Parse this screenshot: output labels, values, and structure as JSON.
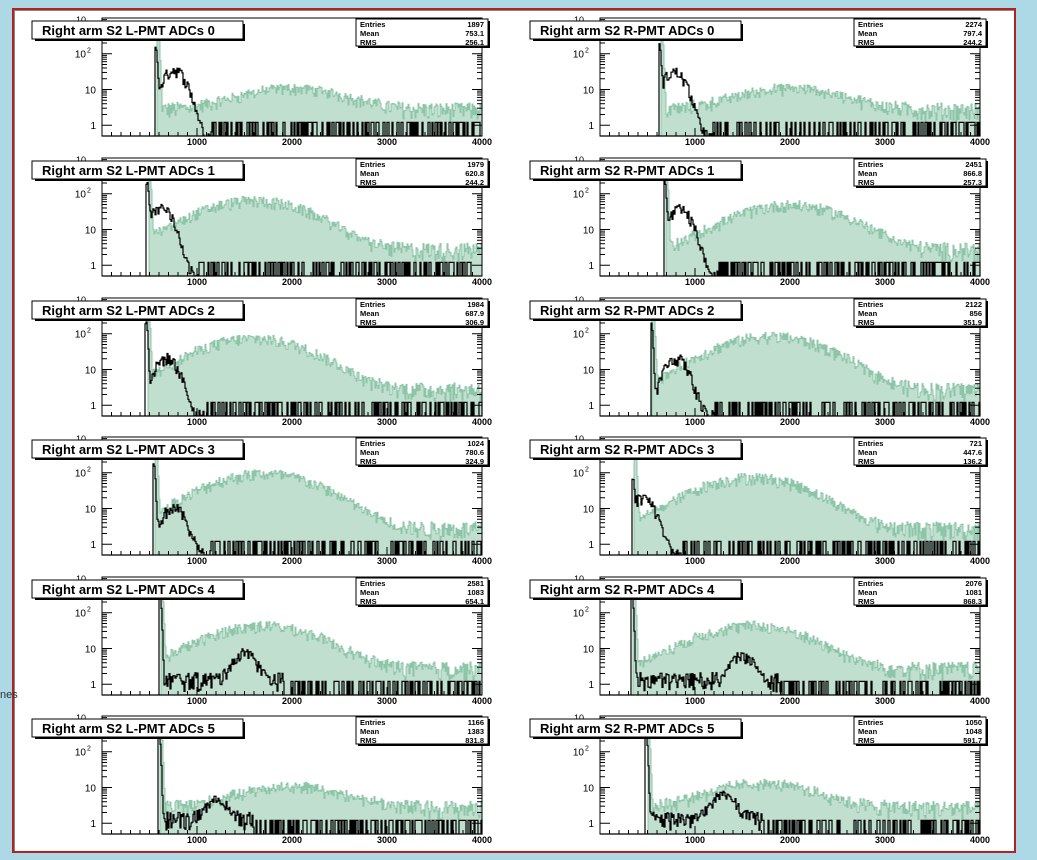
{
  "side_label": "nes",
  "colors": {
    "background": "#add8e6",
    "frame": "#b22222",
    "hist_line": "#000000",
    "hist_fill": "#8cc5a8"
  },
  "chart_data": [
    {
      "type": "histogram",
      "title": "Right arm S2 L-PMT ADCs 0",
      "stats": {
        "Entries": "1897",
        "Mean": "753.1",
        "RMS": "256.1"
      },
      "x_ticks": [
        "1000",
        "2000",
        "3000",
        "4000"
      ],
      "y_ticks": [
        "1",
        "10",
        "10²"
      ],
      "xlim": [
        0,
        4000
      ],
      "y_scale": "log",
      "series": [
        {
          "color": "#000000",
          "peak_x": 565,
          "peak_y": 150,
          "bump_x": 760,
          "bump_y": 35,
          "tail_y": 0.5
        },
        {
          "color": "#8cc5a8",
          "peak_x": 590,
          "peak_y": 500,
          "bump_x": 2000,
          "bump_y": 8,
          "tail_y": 3
        }
      ]
    },
    {
      "type": "histogram",
      "title": "Right arm S2 R-PMT ADCs 0",
      "stats": {
        "Entries": "2274",
        "Mean": "797.4",
        "RMS": "244.2"
      },
      "x_ticks": [
        "1000",
        "2000",
        "3000",
        "4000"
      ],
      "y_ticks": [
        "1",
        "10",
        "10²"
      ],
      "xlim": [
        0,
        4000
      ],
      "y_scale": "log",
      "series": [
        {
          "color": "#000000",
          "peak_x": 625,
          "peak_y": 180,
          "bump_x": 780,
          "bump_y": 30,
          "tail_y": 0.5
        },
        {
          "color": "#8cc5a8",
          "peak_x": 650,
          "peak_y": 500,
          "bump_x": 2000,
          "bump_y": 8,
          "tail_y": 3
        }
      ]
    },
    {
      "type": "histogram",
      "title": "Right arm S2 L-PMT ADCs 1",
      "stats": {
        "Entries": "1979",
        "Mean": "620.8",
        "RMS": "244.2"
      },
      "x_ticks": [
        "1000",
        "2000",
        "3000",
        "4000"
      ],
      "y_ticks": [
        "1",
        "10",
        "10²"
      ],
      "xlim": [
        0,
        4000
      ],
      "y_scale": "log",
      "series": [
        {
          "color": "#000000",
          "peak_x": 475,
          "peak_y": 200,
          "bump_x": 620,
          "bump_y": 40,
          "tail_y": 0.5
        },
        {
          "color": "#8cc5a8",
          "peak_x": 500,
          "peak_y": 500,
          "bump_x": 1600,
          "bump_y": 60,
          "tail_y": 3
        }
      ]
    },
    {
      "type": "histogram",
      "title": "Right arm S2 R-PMT ADCs 1",
      "stats": {
        "Entries": "2451",
        "Mean": "866.8",
        "RMS": "257.3"
      },
      "x_ticks": [
        "1000",
        "2000",
        "3000",
        "4000"
      ],
      "y_ticks": [
        "1",
        "10",
        "10²"
      ],
      "xlim": [
        0,
        4000
      ],
      "y_scale": "log",
      "series": [
        {
          "color": "#000000",
          "peak_x": 680,
          "peak_y": 220,
          "bump_x": 840,
          "bump_y": 35,
          "tail_y": 0.5
        },
        {
          "color": "#8cc5a8",
          "peak_x": 700,
          "peak_y": 500,
          "bump_x": 2000,
          "bump_y": 45,
          "tail_y": 3
        }
      ]
    },
    {
      "type": "histogram",
      "title": "Right arm S2 L-PMT ADCs 2",
      "stats": {
        "Entries": "1984",
        "Mean": "687.9",
        "RMS": "306.9"
      },
      "x_ticks": [
        "1000",
        "2000",
        "3000",
        "4000"
      ],
      "y_ticks": [
        "1",
        "10",
        "10²"
      ],
      "xlim": [
        0,
        4000
      ],
      "y_scale": "log",
      "series": [
        {
          "color": "#000000",
          "peak_x": 465,
          "peak_y": 220,
          "bump_x": 680,
          "bump_y": 20,
          "tail_y": 0.5
        },
        {
          "color": "#8cc5a8",
          "peak_x": 490,
          "peak_y": 500,
          "bump_x": 1600,
          "bump_y": 70,
          "tail_y": 3
        }
      ]
    },
    {
      "type": "histogram",
      "title": "Right arm S2 R-PMT ADCs 2",
      "stats": {
        "Entries": "2122",
        "Mean": "856",
        "RMS": "351.9"
      },
      "x_ticks": [
        "1000",
        "2000",
        "3000",
        "4000"
      ],
      "y_ticks": [
        "1",
        "10",
        "10²"
      ],
      "xlim": [
        0,
        4000
      ],
      "y_scale": "log",
      "series": [
        {
          "color": "#000000",
          "peak_x": 540,
          "peak_y": 200,
          "bump_x": 800,
          "bump_y": 20,
          "tail_y": 0.5
        },
        {
          "color": "#8cc5a8",
          "peak_x": 560,
          "peak_y": 500,
          "bump_x": 1800,
          "bump_y": 80,
          "tail_y": 3
        }
      ]
    },
    {
      "type": "histogram",
      "title": "Right arm S2 L-PMT ADCs 3",
      "stats": {
        "Entries": "1024",
        "Mean": "780.6",
        "RMS": "324.9"
      },
      "x_ticks": [
        "1000",
        "2000",
        "3000",
        "4000"
      ],
      "y_ticks": [
        "1",
        "10",
        "10²"
      ],
      "xlim": [
        0,
        4000
      ],
      "y_scale": "log",
      "series": [
        {
          "color": "#000000",
          "peak_x": 545,
          "peak_y": 180,
          "bump_x": 750,
          "bump_y": 10,
          "tail_y": 0.5
        },
        {
          "color": "#8cc5a8",
          "peak_x": 570,
          "peak_y": 500,
          "bump_x": 1700,
          "bump_y": 90,
          "tail_y": 3
        }
      ]
    },
    {
      "type": "histogram",
      "title": "Right arm S2 R-PMT ADCs 3",
      "stats": {
        "Entries": "721",
        "Mean": "447.6",
        "RMS": "136.2"
      },
      "x_ticks": [
        "1000",
        "2000",
        "3000",
        "4000"
      ],
      "y_ticks": [
        "1",
        "10",
        "10²"
      ],
      "xlim": [
        0,
        4000
      ],
      "y_scale": "log",
      "series": [
        {
          "color": "#000000",
          "peak_x": 345,
          "peak_y": 60,
          "bump_x": 450,
          "bump_y": 20,
          "tail_y": 0.5
        },
        {
          "color": "#8cc5a8",
          "peak_x": 370,
          "peak_y": 500,
          "bump_x": 1600,
          "bump_y": 70,
          "tail_y": 3
        }
      ]
    },
    {
      "type": "histogram",
      "title": "Right arm S2 L-PMT ADCs 4",
      "stats": {
        "Entries": "2581",
        "Mean": "1083",
        "RMS": "654.1"
      },
      "x_ticks": [
        "1000",
        "2000",
        "3000",
        "4000"
      ],
      "y_ticks": [
        "1",
        "10",
        "10²"
      ],
      "xlim": [
        0,
        4000
      ],
      "y_scale": "log",
      "series": [
        {
          "color": "#000000",
          "peak_x": 610,
          "peak_y": 300,
          "bump_x": 1500,
          "bump_y": 6,
          "tail_y": 1.5
        },
        {
          "color": "#8cc5a8",
          "peak_x": 630,
          "peak_y": 500,
          "bump_x": 1700,
          "bump_y": 40,
          "tail_y": 3
        }
      ]
    },
    {
      "type": "histogram",
      "title": "Right arm S2 R-PMT ADCs 4",
      "stats": {
        "Entries": "2076",
        "Mean": "1081",
        "RMS": "868.3"
      },
      "x_ticks": [
        "1000",
        "2000",
        "3000",
        "4000"
      ],
      "y_ticks": [
        "1",
        "10",
        "10²"
      ],
      "xlim": [
        0,
        4000
      ],
      "y_scale": "log",
      "series": [
        {
          "color": "#000000",
          "peak_x": 335,
          "peak_y": 350,
          "bump_x": 1500,
          "bump_y": 5,
          "tail_y": 1.5
        },
        {
          "color": "#8cc5a8",
          "peak_x": 360,
          "peak_y": 500,
          "bump_x": 1600,
          "bump_y": 40,
          "tail_y": 3
        }
      ]
    },
    {
      "type": "histogram",
      "title": "Right arm S2 L-PMT ADCs 5",
      "stats": {
        "Entries": "1166",
        "Mean": "1383",
        "RMS": "831.8"
      },
      "x_ticks": [
        "1000",
        "2000",
        "3000",
        "4000"
      ],
      "y_ticks": [
        "1",
        "10",
        "10²"
      ],
      "xlim": [
        0,
        4000
      ],
      "y_scale": "log",
      "series": [
        {
          "color": "#000000",
          "peak_x": 600,
          "peak_y": 350,
          "bump_x": 1200,
          "bump_y": 3,
          "tail_y": 1.5
        },
        {
          "color": "#8cc5a8",
          "peak_x": 620,
          "peak_y": 500,
          "bump_x": 2000,
          "bump_y": 8,
          "tail_y": 3
        }
      ]
    },
    {
      "type": "histogram",
      "title": "Right arm S2 R-PMT ADCs 5",
      "stats": {
        "Entries": "1050",
        "Mean": "1048",
        "RMS": "591.7"
      },
      "x_ticks": [
        "1000",
        "2000",
        "3000",
        "4000"
      ],
      "y_ticks": [
        "1",
        "10",
        "10²"
      ],
      "xlim": [
        0,
        4000
      ],
      "y_scale": "log",
      "series": [
        {
          "color": "#000000",
          "peak_x": 485,
          "peak_y": 300,
          "bump_x": 1300,
          "bump_y": 5,
          "tail_y": 1.5
        },
        {
          "color": "#8cc5a8",
          "peak_x": 510,
          "peak_y": 500,
          "bump_x": 1700,
          "bump_y": 10,
          "tail_y": 3
        }
      ]
    }
  ]
}
